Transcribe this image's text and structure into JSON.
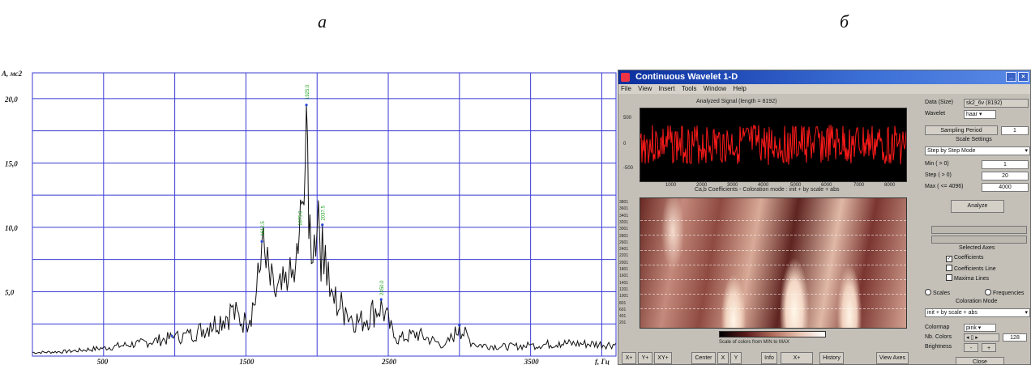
{
  "captions": {
    "a": "а",
    "b": "б"
  },
  "spectrum": {
    "ylabel": "A, мс2",
    "xlabel": "f, Гц",
    "yticks": [
      "20,0",
      "15,0",
      "10,0",
      "5,0"
    ],
    "xticks": [
      "500",
      "1500",
      "2500",
      "3500"
    ],
    "peak_labels": [
      "1925.0",
      "1612.5",
      "1875.0",
      "2037.5",
      "2450.0"
    ],
    "colors": {
      "grid": "#3b3bd6",
      "line": "#111111",
      "peak_label": "#1fa31f",
      "marker": "#2a46d6"
    }
  },
  "chart_data": {
    "type": "line",
    "xlabel": "f, Гц",
    "ylabel": "A, мс2",
    "xlim": [
      0,
      4100
    ],
    "ylim": [
      0,
      22
    ],
    "x": [
      0,
      250,
      500,
      750,
      1000,
      1100,
      1250,
      1400,
      1500,
      1575,
      1612,
      1700,
      1800,
      1850,
      1875,
      1900,
      1925,
      1950,
      2000,
      2037,
      2100,
      2200,
      2300,
      2450,
      2550,
      2700,
      2900,
      3000,
      3100,
      3300,
      3500,
      3700,
      4100
    ],
    "series": [
      {
        "values": [
          0.3,
          0.4,
          0.7,
          1.1,
          1.6,
          1.8,
          2.6,
          3.8,
          2.8,
          5.2,
          8.9,
          5.0,
          6.0,
          7.2,
          9.6,
          12.0,
          19.5,
          11.0,
          9.8,
          10.2,
          5.2,
          3.8,
          2.9,
          4.4,
          1.4,
          1.9,
          0.9,
          2.4,
          1.0,
          0.8,
          0.9,
          1.1,
          1.0
        ]
      }
    ]
  },
  "matlab": {
    "title": "Continuous Wavelet 1-D",
    "menu": [
      "File",
      "View",
      "Insert",
      "Tools",
      "Window",
      "Help"
    ],
    "signal_title": "Analyzed Signal (length = 8192)",
    "signal_yticks": [
      "500",
      "0",
      "-500"
    ],
    "signal_xticks": [
      "1000",
      "2000",
      "3000",
      "4000",
      "5000",
      "6000",
      "7000",
      "8000"
    ],
    "coef_title": "Ca,b Coefficients - Coloration mode : init + by scale + abs",
    "coef_yticks": [
      "3801",
      "3601",
      "3401",
      "3201",
      "3001",
      "2801",
      "2601",
      "2401",
      "2201",
      "2001",
      "1801",
      "1601",
      "1401",
      "1201",
      "1001",
      "801",
      "601",
      "401",
      "201"
    ],
    "colorbar_caption": "Scale of colors from MIN to MAX",
    "bottom_buttons": [
      "X+",
      "Y+",
      "XY+",
      "Center",
      "X",
      "Y",
      "Info",
      "X+",
      "History",
      "View Axes"
    ],
    "panel": {
      "data_label": "Data (Size)",
      "data_value": "sk2_6v (8192)",
      "wavelet_label": "Wavelet",
      "wavelet_value": "haar",
      "sampling_label": "Sampling Period",
      "sampling_value": "1",
      "scale_settings": "Scale Settings",
      "mode_value": "Step by Step Mode",
      "min_label": "Min ( > 0)",
      "min_value": "1",
      "step_label": "Step ( > 0)",
      "step_value": "20",
      "max_label": "Max ( <= 4096)",
      "max_value": "4000",
      "analyze": "Analyze",
      "selected_axes": "Selected Axes",
      "coefficients": "Coefficients",
      "coefficients_line": "Coefficients Line",
      "maxima_lines": "Maxima Lines",
      "scales": "Scales",
      "frequencies": "Frequencies",
      "coloration_mode": "Coloration Mode",
      "coloration_value": "init + by scale + abs",
      "colormap_label": "Colormap",
      "colormap_value": "pink",
      "nb_colors_label": "Nb. Colors",
      "nb_colors_value": "128",
      "brightness_label": "Brightness",
      "brightness_minus": "-",
      "brightness_plus": "+",
      "close": "Close"
    }
  }
}
